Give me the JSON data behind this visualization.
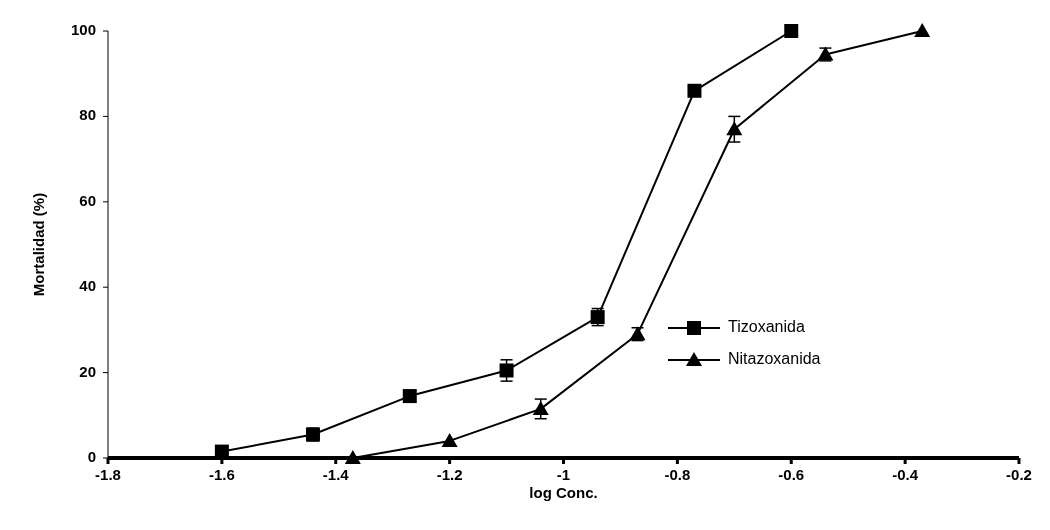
{
  "chart_data": {
    "type": "line",
    "xlabel": "log Conc.",
    "ylabel": "Mortalidad (%)",
    "xlim": [
      -1.8,
      -0.2
    ],
    "xticks": [
      -1.8,
      -1.6,
      -1.4,
      -1.2,
      -1,
      -0.8,
      -0.6,
      -0.4,
      -0.2
    ],
    "ylim": [
      0,
      100
    ],
    "yticks": [
      0,
      20,
      40,
      60,
      80,
      100
    ],
    "grid": false,
    "legend": "right",
    "line_style": "solid",
    "series": [
      {
        "name": "Tizoxanida",
        "color": "#000000",
        "marker": "square",
        "x": [
          -1.6,
          -1.44,
          -1.27,
          -1.1,
          -0.94,
          -0.77,
          -0.6
        ],
        "values": [
          1.5,
          5.5,
          14.5,
          20.5,
          33,
          86,
          100
        ],
        "errors": [
          null,
          1.5,
          null,
          2.5,
          2,
          null,
          null
        ]
      },
      {
        "name": "Nitazoxanida",
        "color": "#000000",
        "marker": "triangle",
        "x": [
          -1.37,
          -1.2,
          -1.04,
          -0.87,
          -0.7,
          -0.54,
          -0.37
        ],
        "values": [
          0,
          4,
          11.5,
          29,
          77,
          94.5,
          100
        ],
        "errors": [
          null,
          null,
          2.3,
          1.5,
          3,
          1.5,
          null
        ]
      }
    ]
  }
}
